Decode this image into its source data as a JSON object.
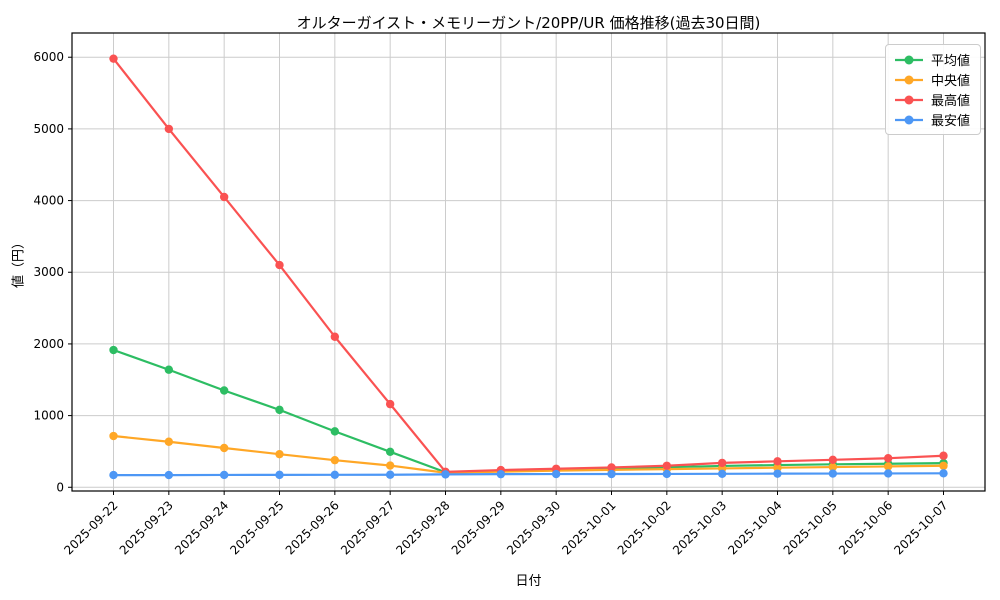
{
  "chart_data": {
    "type": "line",
    "title": "オルターガイスト・メモリーガント/20PP/UR 価格推移(過去30日間)",
    "xlabel": "日付",
    "ylabel": "値（円）",
    "x": [
      "2025-09-22",
      "2025-09-23",
      "2025-09-24",
      "2025-09-25",
      "2025-09-26",
      "2025-09-27",
      "2025-09-28",
      "2025-09-29",
      "2025-09-30",
      "2025-10-01",
      "2025-10-02",
      "2025-10-03",
      "2025-10-04",
      "2025-10-05",
      "2025-10-06",
      "2025-10-07"
    ],
    "series": [
      {
        "name": "平均値",
        "color": "#2dbd63",
        "values": [
          1915,
          1640,
          1350,
          1080,
          780,
          495,
          210,
          228,
          246,
          263,
          280,
          298,
          310,
          320,
          328,
          337
        ]
      },
      {
        "name": "中央値",
        "color": "#ffa726",
        "values": [
          715,
          635,
          548,
          462,
          378,
          303,
          203,
          218,
          232,
          243,
          253,
          263,
          273,
          282,
          291,
          300
        ]
      },
      {
        "name": "最高値",
        "color": "#fa5252",
        "values": [
          5980,
          5000,
          4050,
          3100,
          2100,
          1160,
          215,
          240,
          258,
          277,
          300,
          340,
          362,
          383,
          405,
          440
        ]
      },
      {
        "name": "最安値",
        "color": "#4d97f5",
        "values": [
          170,
          170,
          172,
          173,
          174,
          175,
          180,
          183,
          184,
          185,
          186,
          188,
          190,
          191,
          193,
          195
        ]
      }
    ],
    "yticks": [
      0,
      1000,
      2000,
      3000,
      4000,
      5000,
      6000
    ],
    "ylim": [
      -52,
      6338
    ],
    "grid": true,
    "grid_color": "#cccccc",
    "axis_color": "#000000",
    "background_color": "#ffffff",
    "legend_position": "top-right"
  }
}
